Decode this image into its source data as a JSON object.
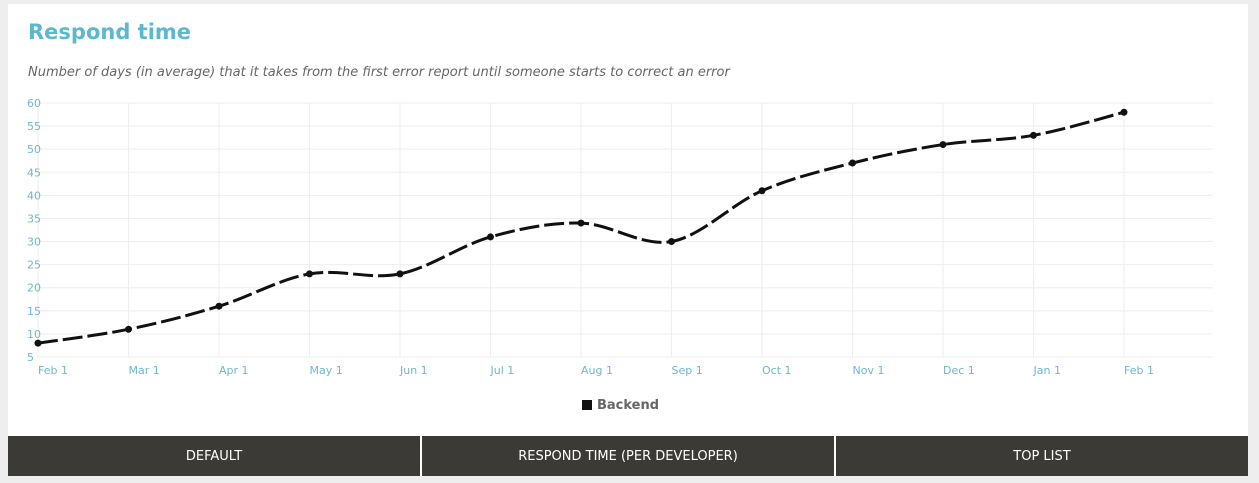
{
  "header": {
    "title": "Respond time",
    "subtitle": "Number of days (in average) that it takes from the first error report until someone starts to correct an error"
  },
  "colors": {
    "title": "#5bb9cf",
    "ticks": "#6cb8cc",
    "grid": "#eeeeee",
    "series": "#111111",
    "tab_bg": "#3b3a36"
  },
  "chart_data": {
    "type": "line",
    "title": "",
    "xlabel": "",
    "ylabel": "",
    "ylim": [
      5,
      60
    ],
    "y_ticks": [
      5,
      10,
      15,
      20,
      25,
      30,
      35,
      40,
      45,
      50,
      55,
      60
    ],
    "x_tick_labels": [
      "Feb 1",
      "Mar 1",
      "Apr 1",
      "May 1",
      "Jun 1",
      "Jul 1",
      "Aug 1",
      "Sep 1",
      "Oct 1",
      "Nov 1",
      "Dec 1",
      "Jan 1",
      "Feb 1"
    ],
    "grid": true,
    "line_style": "dashed",
    "legend_position": "bottom-center",
    "series": [
      {
        "name": "Backend",
        "x": [
          "Feb 1",
          "Mar 1",
          "Apr 1",
          "May 1",
          "Jun 1",
          "Jul 1",
          "Aug 1",
          "Sep 1",
          "Oct 1",
          "Nov 1",
          "Dec 1",
          "Jan 1",
          "Feb 1"
        ],
        "values": [
          8,
          11,
          16,
          23,
          23,
          31,
          34,
          30,
          41,
          47,
          51,
          53,
          58
        ]
      }
    ]
  },
  "tabs": [
    {
      "label": "DEFAULT"
    },
    {
      "label": "RESPOND TIME (PER DEVELOPER)"
    },
    {
      "label": "TOP LIST"
    }
  ]
}
